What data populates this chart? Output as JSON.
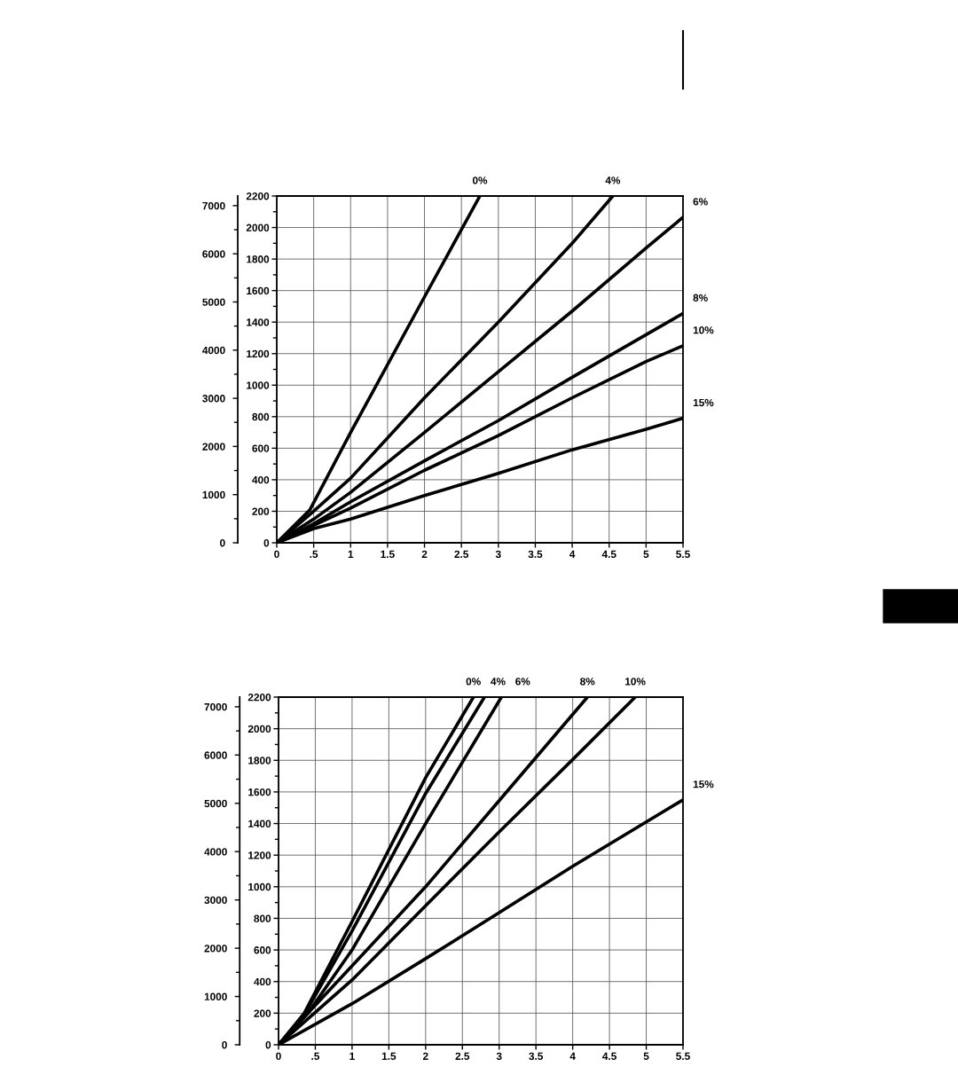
{
  "chart_data": [
    {
      "type": "line",
      "grid": true,
      "xlim": [
        0,
        5.5
      ],
      "xticks": [
        0,
        {
          "value": 0.5,
          "label": ".5"
        },
        1,
        1.5,
        2,
        2.5,
        3,
        3.5,
        4,
        4.5,
        5,
        5.5
      ],
      "ylim": [
        0,
        2200
      ],
      "yticks": [
        0,
        200,
        400,
        600,
        800,
        1000,
        1200,
        1400,
        1600,
        1800,
        2000,
        2200
      ],
      "y2lim": [
        0,
        7200
      ],
      "y2ticks": [
        0,
        1000,
        2000,
        3000,
        4000,
        5000,
        6000,
        7000
      ],
      "series": [
        {
          "name": "0%",
          "color": "#000000",
          "x": [
            0,
            0.45,
            1,
            2,
            2.75
          ],
          "values": [
            0,
            210,
            700,
            1560,
            2200
          ]
        },
        {
          "name": "4%",
          "color": "#000000",
          "x": [
            0,
            0.5,
            1,
            2,
            3,
            4,
            4.55
          ],
          "values": [
            0,
            200,
            410,
            920,
            1400,
            1900,
            2200
          ]
        },
        {
          "name": "6%",
          "color": "#000000",
          "x": [
            0,
            0.5,
            1,
            2,
            3,
            4,
            5,
            5.5
          ],
          "values": [
            0,
            150,
            320,
            700,
            1085,
            1470,
            1870,
            2065
          ]
        },
        {
          "name": "8%",
          "color": "#000000",
          "x": [
            0,
            0.5,
            1,
            2,
            3,
            4,
            5,
            5.5
          ],
          "values": [
            0,
            120,
            260,
            520,
            775,
            1050,
            1320,
            1455
          ]
        },
        {
          "name": "10%",
          "color": "#000000",
          "x": [
            0,
            0.5,
            1,
            2,
            3,
            4,
            5,
            5.5
          ],
          "values": [
            0,
            110,
            220,
            460,
            680,
            920,
            1150,
            1250
          ]
        },
        {
          "name": "15%",
          "color": "#000000",
          "x": [
            0,
            0.5,
            1,
            2,
            3,
            4,
            5,
            5.5
          ],
          "values": [
            0,
            90,
            150,
            300,
            440,
            590,
            720,
            790
          ]
        }
      ]
    },
    {
      "type": "line",
      "grid": true,
      "xlim": [
        0,
        5.5
      ],
      "xticks": [
        0,
        {
          "value": 0.5,
          "label": ".5"
        },
        1,
        1.5,
        2,
        2.5,
        3,
        3.5,
        4,
        4.5,
        5,
        5.5
      ],
      "ylim": [
        0,
        2200
      ],
      "yticks": [
        0,
        200,
        400,
        600,
        800,
        1000,
        1200,
        1400,
        1600,
        1800,
        2000,
        2200
      ],
      "y2lim": [
        0,
        7200
      ],
      "y2ticks": [
        0,
        1000,
        2000,
        3000,
        4000,
        5000,
        6000,
        7000
      ],
      "series": [
        {
          "name": "0%",
          "color": "#000000",
          "x": [
            0,
            0.35,
            1,
            2,
            2.65
          ],
          "values": [
            0,
            200,
            780,
            1690,
            2200
          ]
        },
        {
          "name": "4%",
          "color": "#000000",
          "x": [
            0,
            0.35,
            1,
            2,
            2.8
          ],
          "values": [
            0,
            190,
            720,
            1590,
            2200
          ]
        },
        {
          "name": "6%",
          "color": "#000000",
          "x": [
            0,
            0.4,
            1,
            2,
            3.03
          ],
          "values": [
            0,
            200,
            600,
            1400,
            2200
          ]
        },
        {
          "name": "8%",
          "color": "#000000",
          "x": [
            0,
            1,
            2,
            3,
            4.2
          ],
          "values": [
            0,
            500,
            1000,
            1545,
            2200
          ]
        },
        {
          "name": "10%",
          "color": "#000000",
          "x": [
            0,
            1,
            2,
            3,
            4,
            4.85
          ],
          "values": [
            0,
            410,
            880,
            1347,
            1805,
            2200
          ]
        },
        {
          "name": "15%",
          "color": "#000000",
          "x": [
            0,
            1,
            2,
            3,
            4,
            5,
            5.5
          ],
          "values": [
            0,
            260,
            545,
            836,
            1130,
            1410,
            1550
          ]
        }
      ]
    }
  ]
}
